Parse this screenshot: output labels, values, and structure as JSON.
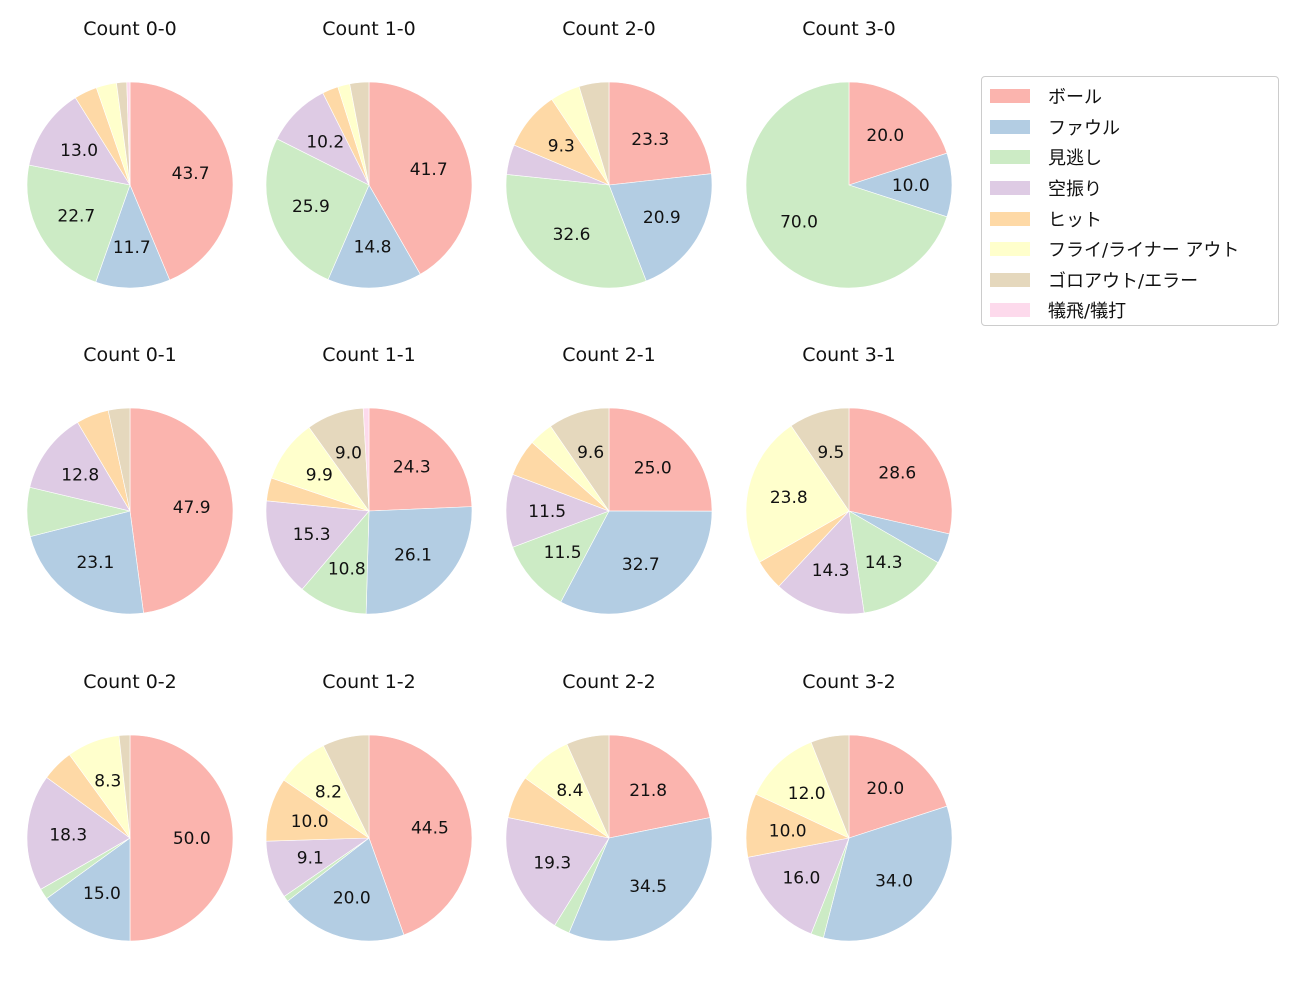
{
  "colors": [
    "#fbb4ae",
    "#b3cde3",
    "#ccebc5",
    "#decbe4",
    "#fed9a6",
    "#ffffcc",
    "#e5d8bd",
    "#fddaec"
  ],
  "legend": {
    "placement": "right",
    "entries": [
      "ボール",
      "ファウル",
      "見逃し",
      "空振り",
      "ヒット",
      "フライ/ライナー アウト",
      "ゴロアウト/エラー",
      "犠飛/犠打"
    ]
  },
  "chart_data": {
    "type": "pie",
    "direction": "clockwise from top",
    "categories": [
      "ボール",
      "ファウル",
      "見逃し",
      "空振り",
      "ヒット",
      "フライ/ライナー アウト",
      "ゴロアウト/エラー",
      "犠飛/犠打"
    ],
    "charts": [
      {
        "title": "Count 0-0",
        "values": [
          43.7,
          11.7,
          22.7,
          13.0,
          3.6,
          3.2,
          1.6,
          0.5
        ]
      },
      {
        "title": "Count 1-0",
        "values": [
          41.7,
          14.8,
          25.9,
          10.2,
          2.5,
          1.9,
          3.0,
          0
        ]
      },
      {
        "title": "Count 2-0",
        "values": [
          23.3,
          20.9,
          32.6,
          4.7,
          9.3,
          4.7,
          4.7,
          0
        ]
      },
      {
        "title": "Count 3-0",
        "values": [
          20.0,
          10.0,
          70.0,
          0,
          0,
          0,
          0,
          0
        ]
      },
      {
        "title": "Count 0-1",
        "values": [
          47.9,
          23.1,
          7.7,
          12.8,
          5.1,
          0,
          3.4,
          0
        ]
      },
      {
        "title": "Count 1-1",
        "values": [
          24.3,
          26.1,
          10.8,
          15.3,
          3.6,
          9.9,
          9.0,
          0.9
        ]
      },
      {
        "title": "Count 2-1",
        "values": [
          25.0,
          32.7,
          11.5,
          11.5,
          5.8,
          3.8,
          9.6,
          0
        ]
      },
      {
        "title": "Count 3-1",
        "values": [
          28.6,
          4.8,
          14.3,
          14.3,
          4.8,
          23.8,
          9.5,
          0
        ]
      },
      {
        "title": "Count 0-2",
        "values": [
          50.0,
          15.0,
          1.7,
          18.3,
          5.0,
          8.3,
          1.7,
          0
        ]
      },
      {
        "title": "Count 1-2",
        "values": [
          44.5,
          20.0,
          0.9,
          9.1,
          10.0,
          8.2,
          7.3,
          0
        ]
      },
      {
        "title": "Count 2-2",
        "values": [
          21.8,
          34.5,
          2.5,
          19.3,
          6.7,
          8.4,
          6.7,
          0
        ]
      },
      {
        "title": "Count 3-2",
        "values": [
          20.0,
          34.0,
          2.0,
          16.0,
          10.0,
          12.0,
          6.0,
          0
        ]
      }
    ]
  }
}
